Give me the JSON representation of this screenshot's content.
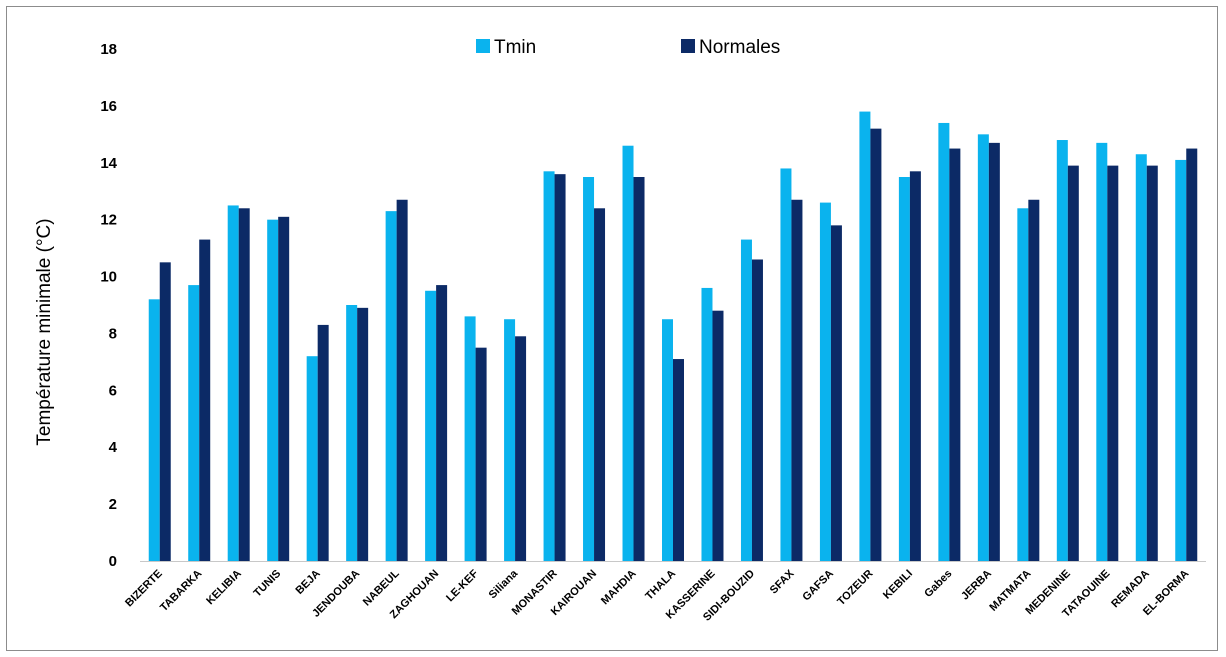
{
  "chart_data": {
    "type": "bar",
    "title": "",
    "xlabel": "",
    "ylabel": "Température minimale (°C)",
    "ylim": [
      0,
      18
    ],
    "yticks": [
      0,
      2,
      4,
      6,
      8,
      10,
      12,
      14,
      16,
      18
    ],
    "grid": false,
    "legend_position": "top",
    "categories": [
      "BIZERTE",
      "TABARKA",
      "KELIBIA",
      "TUNIS",
      "BEJA",
      "JENDOUBA",
      "NABEUL",
      "ZAGHOUAN",
      "LE-KEF",
      "Siliana",
      "MONASTIR",
      "KAIROUAN",
      "MAHDIA",
      "THALA",
      "KASSERINE",
      "SIDI-BOUZID",
      "SFAX",
      "GAFSA",
      "TOZEUR",
      "KEBILI",
      "Gabes",
      "JERBA",
      "MATMATA",
      "MEDENINE",
      "TATAOUINE",
      "REMADA",
      "EL-BORMA"
    ],
    "series": [
      {
        "name": "Tmin",
        "color": "#0ab3ee",
        "values": [
          9.2,
          9.7,
          12.5,
          12.0,
          7.2,
          9.0,
          12.3,
          9.5,
          8.6,
          8.5,
          13.7,
          13.5,
          14.6,
          8.5,
          9.6,
          11.3,
          13.8,
          12.6,
          15.8,
          13.5,
          15.4,
          15.0,
          12.4,
          14.8,
          14.7,
          14.3,
          14.1
        ]
      },
      {
        "name": "Normales",
        "color": "#0c2a66",
        "values": [
          10.5,
          11.3,
          12.4,
          12.1,
          8.3,
          8.9,
          12.7,
          9.7,
          7.5,
          7.9,
          13.6,
          12.4,
          13.5,
          7.1,
          8.8,
          10.6,
          12.7,
          11.8,
          15.2,
          13.7,
          14.5,
          14.7,
          12.7,
          13.9,
          13.9,
          13.9,
          14.5
        ]
      }
    ]
  }
}
